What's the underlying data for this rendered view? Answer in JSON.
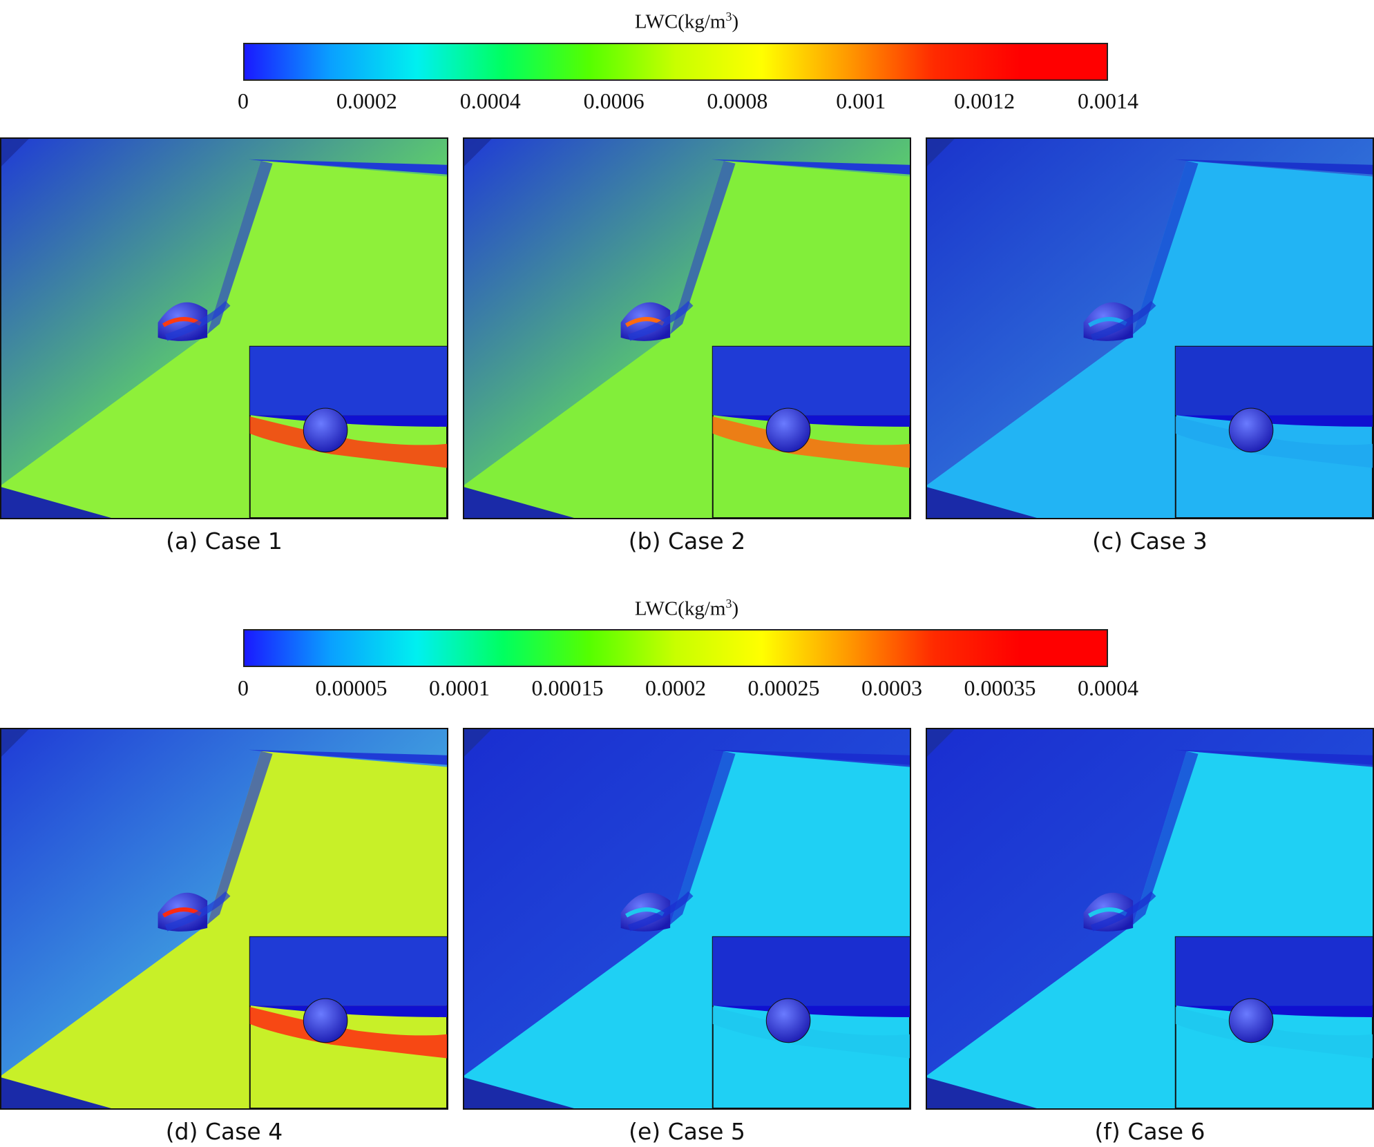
{
  "colorbars": [
    {
      "title_prefix": "LWC(kg/m",
      "title_sup": "3",
      "title_suffix": ")",
      "ticks": [
        "0",
        "0.0002",
        "0.0004",
        "0.0006",
        "0.0008",
        "0.001",
        "0.0012",
        "0.0014"
      ],
      "gradient": [
        "#1a1aff",
        "#0aa0ff",
        "#00f0f0",
        "#00ff60",
        "#55ff00",
        "#c8ff00",
        "#ffff00",
        "#ff9900",
        "#ff2a00",
        "#ff0000",
        "#ff0000"
      ]
    },
    {
      "title_prefix": "LWC(kg/m",
      "title_sup": "3",
      "title_suffix": ")",
      "ticks": [
        "0",
        "0.00005",
        "0.0001",
        "0.00015",
        "0.0002",
        "0.00025",
        "0.0003",
        "0.00035",
        "0.0004"
      ],
      "gradient": [
        "#1a1aff",
        "#0aa0ff",
        "#00f0f0",
        "#00ff60",
        "#55ff00",
        "#c8ff00",
        "#ffff00",
        "#ff9900",
        "#ff2a00",
        "#ff0000",
        "#ff0000"
      ]
    }
  ],
  "panels": [
    {
      "caption": "(a) Case 1",
      "field_color": "#8ef03a",
      "upstream_color": "#5fd06a",
      "top_color": "#1f3bd6",
      "wake_color": "#ff3a10"
    },
    {
      "caption": "(b) Case 2",
      "field_color": "#82ee3a",
      "upstream_color": "#5ccd6c",
      "top_color": "#1f3bd6",
      "wake_color": "#ff6a10"
    },
    {
      "caption": "(c) Case 3",
      "field_color": "#22b4f4",
      "upstream_color": "#2f6ed8",
      "top_color": "#1a34cc",
      "wake_color": "#1fa8f0"
    },
    {
      "caption": "(d) Case 4",
      "field_color": "#c8f028",
      "upstream_color": "#3f9ee0",
      "top_color": "#1f3bd6",
      "wake_color": "#ff2a10"
    },
    {
      "caption": "(e) Case 5",
      "field_color": "#1fd0f4",
      "upstream_color": "#2048d8",
      "top_color": "#1a2ed0",
      "wake_color": "#1ec8ee"
    },
    {
      "caption": "(f) Case 6",
      "field_color": "#1fd0f4",
      "upstream_color": "#2048d8",
      "top_color": "#1a2ed0",
      "wake_color": "#1ec8ee"
    }
  ]
}
